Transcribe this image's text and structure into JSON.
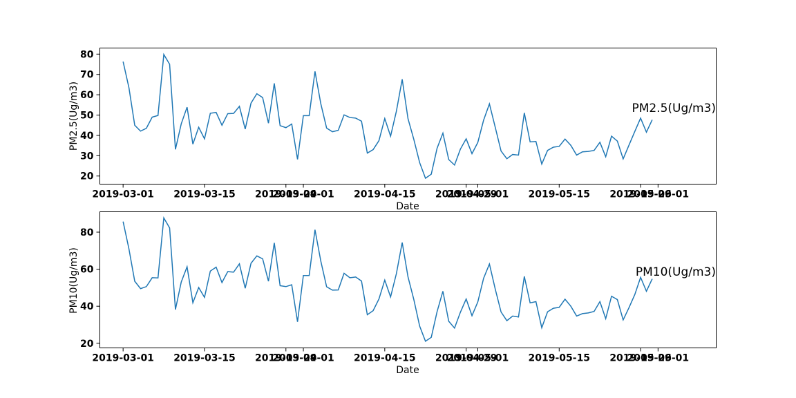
{
  "colors": {
    "line": "#1f77b4",
    "axes": "#000000",
    "background": "#ffffff"
  },
  "chart_data": [
    {
      "type": "line",
      "title": "",
      "xlabel": "Date",
      "ylabel": "PM2.5(Ug/m3)",
      "annotation": "PM2.5(Ug/m3)",
      "x_start": "2019-03-01",
      "xlim": [
        "2019-02-25",
        "2019-06-11"
      ],
      "ylim": [
        16,
        83
      ],
      "yticks": [
        20,
        30,
        40,
        50,
        60,
        70,
        80
      ],
      "xticks": [
        "2019-03-01",
        "2019-03-15",
        "2019-03-29",
        "2019-04-01",
        "2019-04-15",
        "2019-04-29",
        "2019-05-01",
        "2019-05-15",
        "2019-05-29",
        "2019-06-01"
      ],
      "xtick_labels": [
        "2019-03-01",
        "2019-03-15",
        "2019-03-29",
        "2019-04-01",
        "2019-04-15",
        "2019-04-29",
        "2019-05-01",
        "2019-05-15",
        "2019-05-29",
        "2019-06-01"
      ],
      "grid": false,
      "series": [
        {
          "values": [
            76.3,
            63.5,
            45.0,
            42.1,
            43.5,
            49.0,
            49.8,
            79.8,
            75.0,
            33.1,
            45.7,
            53.9,
            35.7,
            44.0,
            38.3,
            50.9,
            51.3,
            45.0,
            50.7,
            50.8,
            54.3,
            43.1,
            55.9,
            60.5,
            58.6,
            46.0,
            65.6,
            44.8,
            43.8,
            45.6,
            28.2,
            49.7,
            49.7,
            71.5,
            55.6,
            43.6,
            41.8,
            42.5,
            50.1,
            48.8,
            48.5,
            47.0,
            31.3,
            33.0,
            37.4,
            48.3,
            39.6,
            51.9,
            67.6,
            48.2,
            38.0,
            26.6,
            18.9,
            20.9,
            33.7,
            41.1,
            28.1,
            25.4,
            33.2,
            38.3,
            31.0,
            36.5,
            47.5,
            55.5,
            44.0,
            32.3,
            28.5,
            30.6,
            30.3,
            51.1,
            36.8,
            37.0,
            25.9,
            32.6,
            34.2,
            34.6,
            38.2,
            35.1,
            30.3,
            31.9,
            32.1,
            32.6,
            36.6,
            29.5,
            39.6,
            37.2,
            28.4,
            35.2,
            41.9,
            48.5,
            41.6,
            47.7
          ]
        }
      ]
    },
    {
      "type": "line",
      "title": "",
      "xlabel": "Date",
      "ylabel": "PM10(Ug/m3)",
      "annotation": "PM10(Ug/m3)",
      "x_start": "2019-03-01",
      "xlim": [
        "2019-02-25",
        "2019-06-11"
      ],
      "ylim": [
        17.5,
        91
      ],
      "yticks": [
        20,
        40,
        60,
        80
      ],
      "xticks": [
        "2019-03-01",
        "2019-03-15",
        "2019-03-29",
        "2019-04-01",
        "2019-04-15",
        "2019-04-29",
        "2019-05-01",
        "2019-05-15",
        "2019-05-29",
        "2019-06-01"
      ],
      "xtick_labels": [
        "2019-03-01",
        "2019-03-15",
        "2019-03-29",
        "2019-04-01",
        "2019-04-15",
        "2019-04-29",
        "2019-05-01",
        "2019-05-15",
        "2019-05-29",
        "2019-06-01"
      ],
      "grid": false,
      "series": [
        {
          "values": [
            85.7,
            71.0,
            53.5,
            49.5,
            50.6,
            55.4,
            55.3,
            87.7,
            82.3,
            38.2,
            53.1,
            61.3,
            41.9,
            50.1,
            44.8,
            59.0,
            61.1,
            52.8,
            58.7,
            58.4,
            62.9,
            49.7,
            63.2,
            67.2,
            65.6,
            53.5,
            74.2,
            51.1,
            50.6,
            51.6,
            31.6,
            56.6,
            56.6,
            81.3,
            64.4,
            50.5,
            48.7,
            48.8,
            57.8,
            55.4,
            55.8,
            53.6,
            35.4,
            37.6,
            43.9,
            54.1,
            45.0,
            57.6,
            74.4,
            55.8,
            43.6,
            29.3,
            21.1,
            23.2,
            37.1,
            48.1,
            31.9,
            28.2,
            36.7,
            43.9,
            34.9,
            42.3,
            55.1,
            62.8,
            49.3,
            36.9,
            32.2,
            34.7,
            34.2,
            56.1,
            41.8,
            42.5,
            28.4,
            37.0,
            38.9,
            39.4,
            43.8,
            40.0,
            34.7,
            36.0,
            36.4,
            37.2,
            42.5,
            33.3,
            45.4,
            43.6,
            32.6,
            39.2,
            46.3,
            55.6,
            48.1,
            54.8
          ]
        }
      ]
    }
  ]
}
